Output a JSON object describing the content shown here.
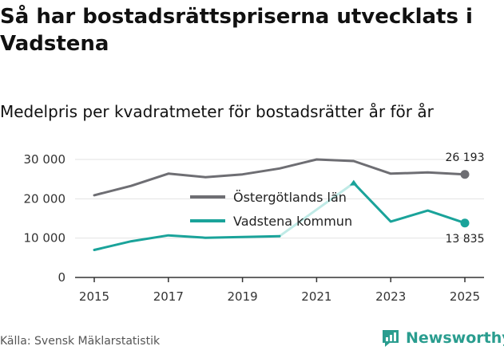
{
  "title": "Så har bostadsrättspriserna utvecklats i Vadstena",
  "subtitle": "Medelpris per kvadratmeter för bostadsrätter år för år",
  "source": "Källa: Svensk Mäklarstatistik",
  "brand": "Newsworthy",
  "colors": {
    "county": "#6e6e73",
    "municipality": "#1aa39a",
    "municipality_light": "#bfeae6",
    "grid": "#e2e2e2",
    "axis": "#333333"
  },
  "chart_data": {
    "type": "line",
    "x": [
      2015,
      2016,
      2017,
      2018,
      2019,
      2020,
      2021,
      2022,
      2023,
      2024,
      2025
    ],
    "xticks": [
      2015,
      2017,
      2019,
      2021,
      2023,
      2025
    ],
    "ylim": [
      0,
      30000
    ],
    "yticks": [
      0,
      10000,
      20000,
      30000
    ],
    "ytick_labels": [
      "0",
      "10 000",
      "20 000",
      "30 000"
    ],
    "series": [
      {
        "name": "Östergötlands län",
        "values": [
          20900,
          23300,
          26400,
          25500,
          26200,
          27700,
          30000,
          29600,
          26400,
          26700,
          26193
        ],
        "end_label": "26 193"
      },
      {
        "name": "Vadstena kommun",
        "values": [
          7000,
          9200,
          10700,
          10100,
          10300,
          10500,
          null,
          24000,
          14200,
          17000,
          13835
        ],
        "end_label": "13 835"
      }
    ]
  }
}
